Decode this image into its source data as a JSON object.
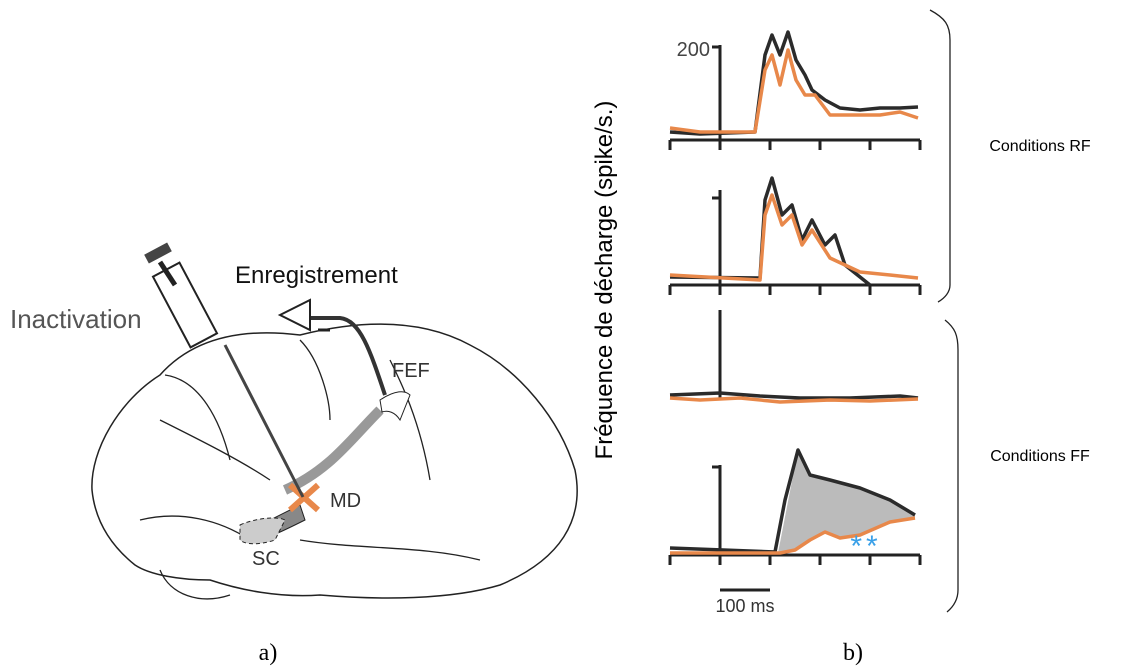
{
  "panel_a": {
    "inactivation": "Inactivation",
    "recording": "Enregistrement",
    "fef": "FEF",
    "md": "MD",
    "sc": "SC",
    "caption": "a)"
  },
  "panel_b": {
    "y_axis_label": "Fréquence de décharge (spike/s.)",
    "y_tick": "200",
    "scale_bar": "100 ms",
    "significance": "**",
    "groups": [
      {
        "label": "Conditions RF"
      },
      {
        "label": "Conditions FF"
      }
    ],
    "caption": "b)"
  }
}
